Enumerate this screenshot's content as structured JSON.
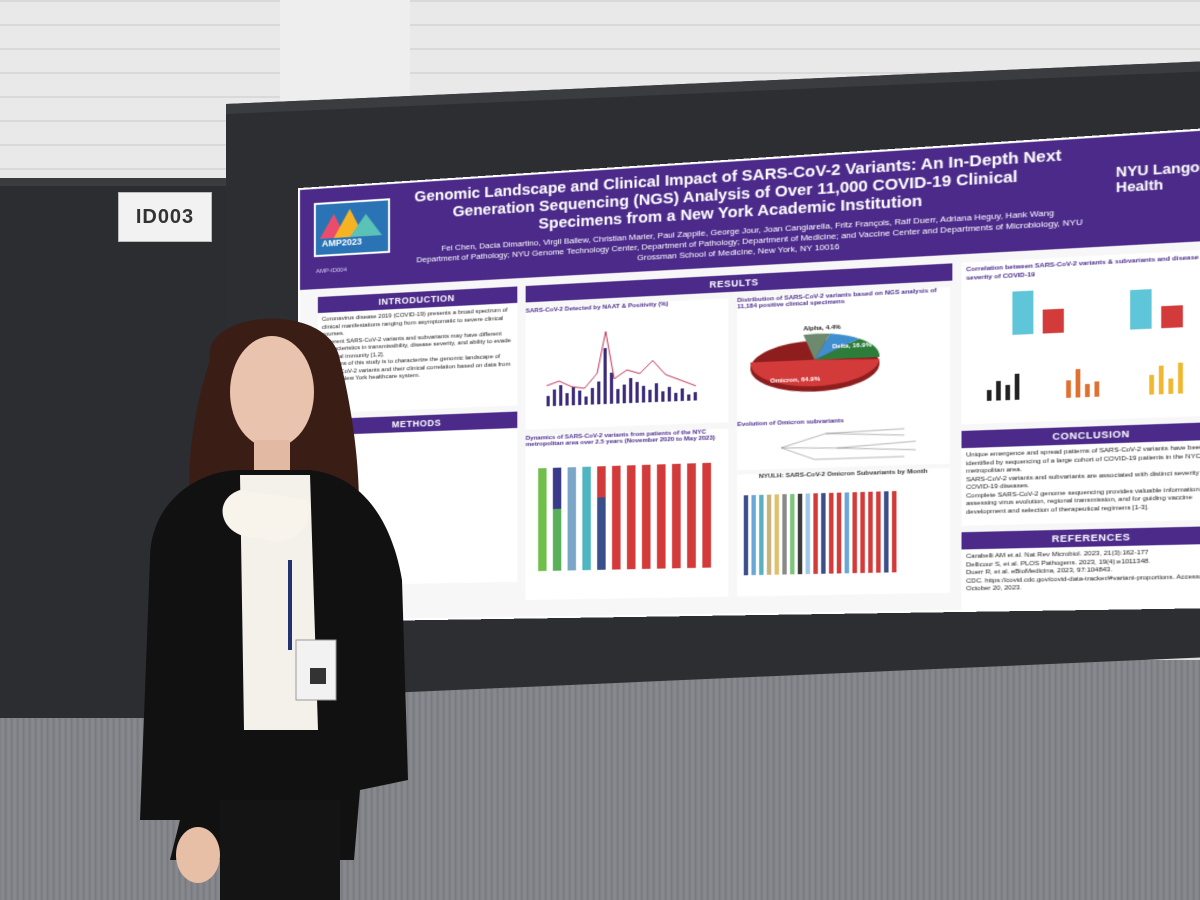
{
  "booth": {
    "id_label": "ID003"
  },
  "poster": {
    "title": "Genomic Landscape and Clinical Impact of SARS-CoV-2 Variants: An In-Depth Next Generation Sequencing (NGS) Analysis of Over 11,000 COVID-19 Clinical Specimens from a New York Academic Institution",
    "authors": "Fei Chen, Dacia Dimartino, Virgil Ballew, Christian Marier, Paul Zappile, George Jour, Joan Cangiarella, Fritz François, Ralf Duerr, Adriana Heguy, Hank Wang",
    "affiliations": "Department of Pathology; NYU Genome Technology Center, Department of Pathology; Department of Medicine; and Vaccine Center and Departments of Microbiology, NYU Grossman School of Medicine, New York, NY 10016",
    "logo_left_text": "AMP2023",
    "poster_id": "AMP-ID004",
    "logo_right_line1": "NYU Langone",
    "logo_right_line2": "Health",
    "sections": {
      "introduction": {
        "heading": "INTRODUCTION",
        "bullets": [
          "Coronavirus disease 2019 (COVID-19) presents a broad spectrum of clinical manifestations ranging from asymptomatic to severe clinical courses.",
          "Different SARS-CoV-2 variants and subvariants may have different characteristics in transmissibility, disease severity, and ability to evade humoral immunity [1,2].",
          "The aims of this study is to characterize the genomic landscape of SARS-CoV-2 variants and their clinical correlation based on data from a large New York healthcare system."
        ]
      },
      "methods": {
        "heading": "METHODS"
      },
      "results": {
        "heading": "RESULTS",
        "chart1_title": "SARS-CoV-2 Detected by NAAT & Positivity (%)",
        "chart2_title": "Distribution of SARS-CoV-2 variants based on NGS analysis of 11,184 positive clinical specimens",
        "chart3_title": "Evolution of Omicron subvariants",
        "chart4_title": "Dynamics of SARS-CoV-2 variants from patients of the NYC metropolitan area over 2.5 years (November 2020 to May 2023)",
        "chart5_title": "NYULH: SARS-CoV-2 Omicron Subvariants by Month",
        "omicron_label": "Omicron, 64.9%",
        "delta_label": "Delta, 16.9%",
        "alpha_label": "Alpha, 4.4%"
      },
      "correlation": {
        "heading": "Correlation between SARS-CoV-2 variants & subvariants and disease severity of COVID-19"
      },
      "conclusion": {
        "heading": "CONCLUSION",
        "bullets": [
          "Unique emergence and spread patterns of SARS-CoV-2 variants have been identified by sequencing of a large cohort of COVID-19 patients in the NYC metropolitan area.",
          "SARS-CoV-2 variants and subvariants are associated with distinct severity of COVID-19 diseases.",
          "Complete SARS-CoV-2 genome sequencing provides valuable information for assessing virus evolution, regional transmission, and for guiding vaccine development and selection of therapeutical regimens [1-3]."
        ]
      },
      "references": {
        "heading": "REFERENCES",
        "items": [
          "Carabelli AM et al. Nat Rev Microbiol. 2023, 21(3):162-177",
          "Dellicour S, et al. PLOS Pathogens. 2023, 19(4):e1011348.",
          "Duerr R, et al. eBioMedicina, 2023, 97:104843.",
          "CDC. https://covid.cdc.gov/covid-data-tracker/#variant-proportions. Accessed on October 20, 2023."
        ]
      }
    }
  },
  "colors": {
    "poster_purple": "#4b2a8a",
    "board": "#2c2e31",
    "wall": "#e9e9e9"
  }
}
